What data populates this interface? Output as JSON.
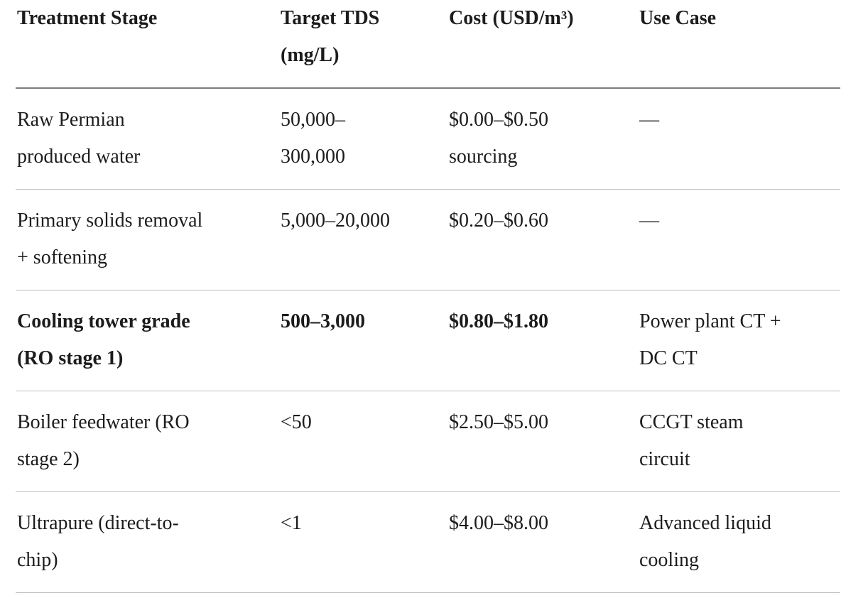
{
  "colors": {
    "background": "#ffffff",
    "text": "#1c1c1c",
    "header_rule": "#7d7d7d",
    "row_rule": "#bdbdbd"
  },
  "table": {
    "headers": [
      {
        "text": "Treatment Stage"
      },
      {
        "text": "Target TDS\n(mg/L)"
      },
      {
        "text": "Cost (USD/m³)"
      },
      {
        "text": "Use Case"
      }
    ],
    "rows": [
      {
        "cells": [
          {
            "text": "Raw Permian\nproduced water",
            "bold": false
          },
          {
            "text": "50,000–\n300,000",
            "bold": false
          },
          {
            "text": "$0.00–$0.50\nsourcing",
            "bold": false
          },
          {
            "text": "—",
            "bold": false
          }
        ]
      },
      {
        "cells": [
          {
            "text": "Primary solids removal\n+ softening",
            "bold": false
          },
          {
            "text": "5,000–20,000",
            "bold": false
          },
          {
            "text": "$0.20–$0.60",
            "bold": false
          },
          {
            "text": "—",
            "bold": false
          }
        ]
      },
      {
        "cells": [
          {
            "text": "Cooling tower grade\n(RO stage 1)",
            "bold": true
          },
          {
            "text": "500–3,000",
            "bold": true
          },
          {
            "text": "$0.80–$1.80",
            "bold": true
          },
          {
            "text": "Power plant CT +\nDC CT",
            "bold": false
          }
        ]
      },
      {
        "cells": [
          {
            "text": "Boiler feedwater (RO\nstage 2)",
            "bold": false
          },
          {
            "text": "<50",
            "bold": false
          },
          {
            "text": "$2.50–$5.00",
            "bold": false
          },
          {
            "text": "CCGT steam\ncircuit",
            "bold": false
          }
        ]
      },
      {
        "cells": [
          {
            "text": "Ultrapure (direct-to-\nchip)",
            "bold": false
          },
          {
            "text": "<1",
            "bold": false
          },
          {
            "text": "$4.00–$8.00",
            "bold": false
          },
          {
            "text": "Advanced liquid\ncooling",
            "bold": false
          }
        ]
      }
    ]
  }
}
